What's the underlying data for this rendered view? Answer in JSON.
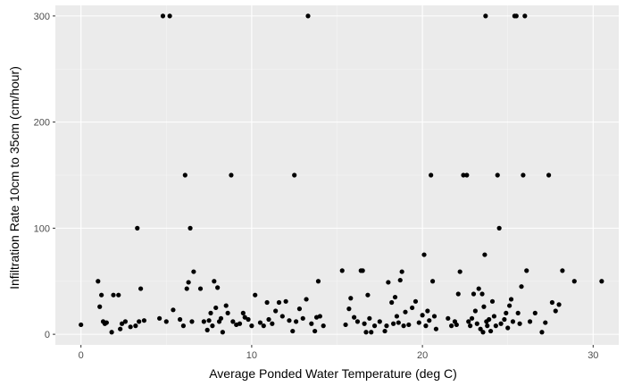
{
  "chart_data": {
    "type": "scatter",
    "title": "",
    "xlabel": "Average Ponded Water Temperature (deg C)",
    "ylabel": "Infiltration Rate 10cm to 35cm (cm/hour)",
    "xlim": [
      -1.5,
      31.5
    ],
    "ylim": [
      -10,
      310
    ],
    "xticks": [
      0,
      10,
      20,
      30
    ],
    "yticks": [
      0,
      100,
      200,
      300
    ],
    "grid": true,
    "legend": "none",
    "colors": {
      "panel": "#ebebeb",
      "grid_major": "#ffffff",
      "grid_minor": "#f5f5f5",
      "point": "#000000",
      "tick_label": "#4d4d4d"
    },
    "series": [
      {
        "points": [
          [
            0,
            9
          ],
          [
            1,
            50
          ],
          [
            1.1,
            26
          ],
          [
            1.2,
            37
          ],
          [
            1.3,
            12
          ],
          [
            1.4,
            10
          ],
          [
            1.5,
            11
          ],
          [
            1.8,
            2
          ],
          [
            1.9,
            37
          ],
          [
            2.2,
            37
          ],
          [
            2.3,
            5
          ],
          [
            2.4,
            10
          ],
          [
            2.6,
            12
          ],
          [
            2.9,
            7
          ],
          [
            3.2,
            8
          ],
          [
            3.3,
            100
          ],
          [
            3.4,
            12
          ],
          [
            3.5,
            43
          ],
          [
            3.7,
            13
          ],
          [
            4.6,
            15
          ],
          [
            4.8,
            300
          ],
          [
            5.0,
            12
          ],
          [
            5.2,
            300
          ],
          [
            5.4,
            23
          ],
          [
            5.8,
            14
          ],
          [
            6.0,
            8
          ],
          [
            6.1,
            150
          ],
          [
            6.2,
            43
          ],
          [
            6.3,
            49
          ],
          [
            6.4,
            100
          ],
          [
            6.5,
            12
          ],
          [
            6.6,
            59
          ],
          [
            7.0,
            43
          ],
          [
            7.2,
            12
          ],
          [
            7.4,
            4
          ],
          [
            7.5,
            13
          ],
          [
            7.6,
            20
          ],
          [
            7.7,
            8
          ],
          [
            7.8,
            50
          ],
          [
            7.9,
            25
          ],
          [
            8.0,
            44
          ],
          [
            8.1,
            12
          ],
          [
            8.2,
            15
          ],
          [
            8.3,
            2
          ],
          [
            8.5,
            27
          ],
          [
            8.6,
            20
          ],
          [
            8.8,
            150
          ],
          [
            8.9,
            12
          ],
          [
            9.1,
            9
          ],
          [
            9.3,
            10
          ],
          [
            9.5,
            20
          ],
          [
            9.6,
            16
          ],
          [
            9.8,
            14
          ],
          [
            10.0,
            8
          ],
          [
            10.2,
            37
          ],
          [
            10.5,
            11
          ],
          [
            10.7,
            8
          ],
          [
            10.9,
            30
          ],
          [
            11.0,
            14
          ],
          [
            11.2,
            10
          ],
          [
            11.4,
            22
          ],
          [
            11.6,
            30
          ],
          [
            11.8,
            17
          ],
          [
            12.0,
            31
          ],
          [
            12.2,
            13
          ],
          [
            12.4,
            3
          ],
          [
            12.5,
            150
          ],
          [
            12.6,
            12
          ],
          [
            12.8,
            24
          ],
          [
            13.0,
            15
          ],
          [
            13.2,
            33
          ],
          [
            13.3,
            300
          ],
          [
            13.5,
            10
          ],
          [
            13.7,
            3
          ],
          [
            13.8,
            16
          ],
          [
            13.9,
            50
          ],
          [
            14.0,
            17
          ],
          [
            14.2,
            8
          ],
          [
            15.3,
            60
          ],
          [
            15.5,
            9
          ],
          [
            15.7,
            24
          ],
          [
            15.8,
            34
          ],
          [
            16.0,
            16
          ],
          [
            16.2,
            12
          ],
          [
            16.4,
            60
          ],
          [
            16.5,
            60
          ],
          [
            16.6,
            10
          ],
          [
            16.7,
            2
          ],
          [
            16.8,
            37
          ],
          [
            16.9,
            15
          ],
          [
            17.0,
            2
          ],
          [
            17.2,
            8
          ],
          [
            17.5,
            12
          ],
          [
            17.8,
            3
          ],
          [
            17.9,
            8
          ],
          [
            18.0,
            49
          ],
          [
            18.2,
            30
          ],
          [
            18.3,
            10
          ],
          [
            18.4,
            35
          ],
          [
            18.5,
            17
          ],
          [
            18.6,
            11
          ],
          [
            18.7,
            51
          ],
          [
            18.8,
            59
          ],
          [
            18.9,
            8
          ],
          [
            19.0,
            21
          ],
          [
            19.2,
            9
          ],
          [
            19.4,
            25
          ],
          [
            19.6,
            31
          ],
          [
            19.8,
            11
          ],
          [
            20.0,
            18
          ],
          [
            20.1,
            75
          ],
          [
            20.2,
            8
          ],
          [
            20.3,
            22
          ],
          [
            20.4,
            13
          ],
          [
            20.5,
            150
          ],
          [
            20.6,
            50
          ],
          [
            20.7,
            17
          ],
          [
            20.8,
            5
          ],
          [
            21.5,
            15
          ],
          [
            21.7,
            8
          ],
          [
            21.9,
            12
          ],
          [
            22.0,
            9
          ],
          [
            22.1,
            38
          ],
          [
            22.2,
            59
          ],
          [
            22.4,
            150
          ],
          [
            22.6,
            150
          ],
          [
            22.7,
            12
          ],
          [
            22.8,
            8
          ],
          [
            22.9,
            15
          ],
          [
            23.0,
            38
          ],
          [
            23.1,
            22
          ],
          [
            23.2,
            10
          ],
          [
            23.3,
            43
          ],
          [
            23.4,
            5
          ],
          [
            23.5,
            38
          ],
          [
            23.55,
            2
          ],
          [
            23.6,
            26
          ],
          [
            23.7,
            300
          ],
          [
            23.65,
            75
          ],
          [
            23.75,
            12
          ],
          [
            23.8,
            8
          ],
          [
            23.9,
            14
          ],
          [
            24.0,
            3
          ],
          [
            24.1,
            31
          ],
          [
            24.2,
            17
          ],
          [
            24.3,
            8
          ],
          [
            24.4,
            150
          ],
          [
            24.5,
            100
          ],
          [
            24.6,
            10
          ],
          [
            24.8,
            14
          ],
          [
            24.9,
            20
          ],
          [
            25.0,
            6
          ],
          [
            25.1,
            27
          ],
          [
            25.2,
            33
          ],
          [
            25.3,
            12
          ],
          [
            25.4,
            300
          ],
          [
            25.5,
            300
          ],
          [
            25.6,
            20
          ],
          [
            25.7,
            10
          ],
          [
            25.8,
            45
          ],
          [
            25.9,
            150
          ],
          [
            26.0,
            300
          ],
          [
            26.1,
            60
          ],
          [
            26.3,
            12
          ],
          [
            26.6,
            20
          ],
          [
            27.0,
            2
          ],
          [
            27.2,
            11
          ],
          [
            27.4,
            150
          ],
          [
            27.6,
            30
          ],
          [
            27.8,
            22
          ],
          [
            28.0,
            28
          ],
          [
            28.2,
            60
          ],
          [
            28.9,
            50
          ],
          [
            30.5,
            50
          ]
        ]
      }
    ]
  }
}
